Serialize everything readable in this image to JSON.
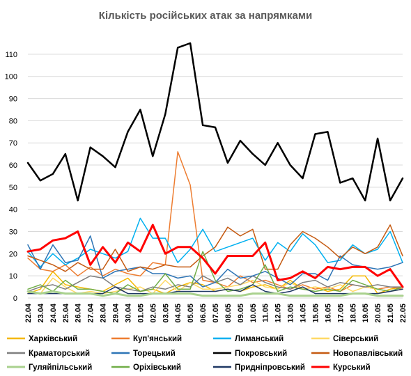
{
  "chart_data": {
    "type": "line",
    "title": "Кількість російських атак за напрямками",
    "xlabel": "",
    "ylabel": "",
    "ylim": [
      0,
      115
    ],
    "yticks": [
      0,
      10,
      20,
      30,
      40,
      50,
      60,
      70,
      80,
      90,
      100,
      110
    ],
    "grid": true,
    "legend_position": "bottom",
    "categories": [
      "22.04",
      "23.04",
      "24.04",
      "25.04",
      "26.04",
      "27.04",
      "28.04",
      "29.04",
      "30.04",
      "01.05",
      "02.05",
      "03.05",
      "04.05",
      "05.05",
      "06.05",
      "07.05",
      "08.05",
      "09.05",
      "10.05",
      "11.05",
      "12.05",
      "13.05",
      "14.05",
      "15.05",
      "16.05",
      "17.05",
      "18.05",
      "19.05",
      "20.05",
      "21.05",
      "22.05"
    ],
    "series": [
      {
        "name": "Харківський",
        "color": "#f5b800",
        "width": 1.5,
        "values": [
          2,
          4,
          12,
          6,
          5,
          4,
          3,
          6,
          9,
          3,
          4,
          2,
          5,
          7,
          6,
          3,
          4,
          3,
          5,
          6,
          4,
          8,
          4,
          5,
          3,
          4,
          10,
          10,
          2,
          4,
          5
        ]
      },
      {
        "name": "Куп'янський",
        "color": "#ed7d31",
        "width": 1.5,
        "values": [
          18,
          13,
          12,
          15,
          10,
          14,
          10,
          13,
          11,
          10,
          16,
          15,
          66,
          51,
          8,
          7,
          5,
          10,
          7,
          8,
          6,
          4,
          6,
          4,
          5,
          3,
          6,
          5,
          4,
          5,
          4
        ]
      },
      {
        "name": "Лиманський",
        "color": "#00b0f0",
        "width": 1.5,
        "values": [
          21,
          14,
          20,
          15,
          18,
          22,
          20,
          18,
          21,
          36,
          27,
          27,
          16,
          22,
          31,
          21,
          23,
          25,
          27,
          17,
          25,
          21,
          29,
          24,
          16,
          17,
          24,
          20,
          22,
          30,
          16
        ]
      },
      {
        "name": "Сіверський",
        "color": "#ffd966",
        "width": 1.5,
        "values": [
          3,
          2,
          9,
          5,
          2,
          3,
          2,
          3,
          4,
          5,
          2,
          8,
          3,
          7,
          4,
          4,
          5,
          6,
          8,
          5,
          4,
          7,
          4,
          5,
          4,
          6,
          3,
          5,
          4,
          3,
          4
        ]
      },
      {
        "name": "Краматорський",
        "color": "#7f7f7f",
        "width": 1.5,
        "values": [
          3,
          5,
          6,
          4,
          7,
          10,
          9,
          5,
          4,
          3,
          5,
          4,
          6,
          5,
          10,
          7,
          9,
          6,
          10,
          7,
          5,
          4,
          7,
          8,
          5,
          7,
          6,
          5,
          6,
          5,
          5
        ]
      },
      {
        "name": "Торецький",
        "color": "#2e75b6",
        "width": 1.5,
        "values": [
          24,
          13,
          24,
          16,
          17,
          28,
          9,
          12,
          13,
          14,
          11,
          11,
          9,
          10,
          5,
          7,
          13,
          9,
          10,
          12,
          9,
          6,
          11,
          11,
          8,
          19,
          15,
          14,
          13,
          14,
          16
        ]
      },
      {
        "name": "Покровський",
        "color": "#000000",
        "width": 2.5,
        "values": [
          61,
          53,
          56,
          65,
          44,
          68,
          64,
          59,
          75,
          85,
          64,
          83,
          113,
          115,
          78,
          77,
          61,
          71,
          65,
          60,
          70,
          60,
          54,
          74,
          75,
          52,
          54,
          44,
          72,
          44,
          54
        ]
      },
      {
        "name": "Новопавлівський",
        "color": "#c55a11",
        "width": 1.5,
        "values": [
          19,
          17,
          15,
          12,
          16,
          13,
          13,
          22,
          12,
          14,
          13,
          15,
          14,
          14,
          19,
          23,
          32,
          28,
          31,
          13,
          13,
          24,
          30,
          27,
          23,
          18,
          23,
          20,
          23,
          33,
          19
        ]
      },
      {
        "name": "Гуляйпільський",
        "color": "#a9d18e",
        "width": 3,
        "values": [
          3,
          2,
          3,
          2,
          2,
          2,
          1,
          2,
          1,
          1,
          2,
          2,
          2,
          2,
          1,
          1,
          1,
          1,
          2,
          2,
          2,
          1,
          1,
          1,
          1,
          1,
          2,
          2,
          1,
          1,
          1
        ]
      },
      {
        "name": "Оріхівський",
        "color": "#70ad47",
        "width": 1.5,
        "values": [
          4,
          6,
          3,
          8,
          4,
          4,
          3,
          2,
          6,
          3,
          4,
          11,
          4,
          4,
          21,
          8,
          3,
          4,
          6,
          15,
          3,
          5,
          4,
          3,
          4,
          3,
          8,
          6,
          4,
          3,
          5
        ]
      },
      {
        "name": "Придніпровський",
        "color": "#1f3864",
        "width": 1.5,
        "values": [
          2,
          2,
          2,
          2,
          2,
          2,
          2,
          5,
          2,
          2,
          2,
          2,
          3,
          3,
          3,
          3,
          4,
          3,
          6,
          3,
          2,
          3,
          5,
          2,
          2,
          2,
          2,
          2,
          2,
          3,
          4
        ]
      },
      {
        "name": "Курський",
        "color": "#ff0000",
        "width": 3,
        "values": [
          21,
          22,
          26,
          27,
          30,
          15,
          23,
          16,
          25,
          21,
          33,
          20,
          23,
          23,
          18,
          11,
          19,
          19,
          19,
          25,
          8,
          9,
          12,
          9,
          14,
          13,
          14,
          14,
          10,
          13,
          5
        ]
      }
    ]
  }
}
